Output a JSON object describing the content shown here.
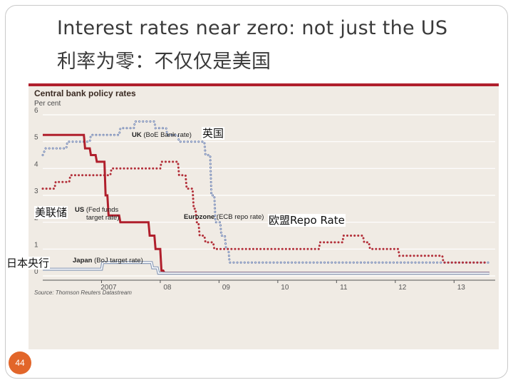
{
  "slide": {
    "title_en": "Interest rates near zero: not just the US",
    "title_zh": "利率为零：不仅仅是美国",
    "slide_number": "44"
  },
  "annotations": {
    "uk": "英国",
    "us": "美联储",
    "japan": "日本央行",
    "eurozone": "欧盟Repo Rate"
  },
  "chart_data": {
    "type": "line",
    "title": "Central bank policy rates",
    "subtitle": "Per cent",
    "source": "Source: Thomson Reuters Datastream",
    "ylim": [
      0,
      6
    ],
    "xlim": [
      2006.0,
      2013.7
    ],
    "y_ticks": [
      "0",
      "1",
      "2",
      "3",
      "4",
      "5",
      "6"
    ],
    "x_ticks": [
      {
        "label": "2007",
        "x": 2007.0
      },
      {
        "label": "08",
        "x": 2008.0
      },
      {
        "label": "09",
        "x": 2009.0
      },
      {
        "label": "10",
        "x": 2010.0
      },
      {
        "label": "11",
        "x": 2011.0
      },
      {
        "label": "12",
        "x": 2012.0
      },
      {
        "label": "13",
        "x": 2013.0
      }
    ],
    "grid": true,
    "series": [
      {
        "name": "UK (BoE Bank rate)",
        "label_main": "UK",
        "label_detail": "(BoE Bank rate)",
        "style": "dotted",
        "color": "#6a7fb0",
        "points": [
          [
            2006.0,
            4.5
          ],
          [
            2006.05,
            4.75
          ],
          [
            2006.4,
            4.75
          ],
          [
            2006.42,
            5.0
          ],
          [
            2006.8,
            5.0
          ],
          [
            2006.82,
            5.25
          ],
          [
            2007.3,
            5.25
          ],
          [
            2007.32,
            5.5
          ],
          [
            2007.55,
            5.5
          ],
          [
            2007.57,
            5.75
          ],
          [
            2007.9,
            5.75
          ],
          [
            2007.92,
            5.5
          ],
          [
            2008.1,
            5.5
          ],
          [
            2008.12,
            5.25
          ],
          [
            2008.3,
            5.25
          ],
          [
            2008.32,
            5.0
          ],
          [
            2008.75,
            5.0
          ],
          [
            2008.77,
            4.5
          ],
          [
            2008.85,
            4.5
          ],
          [
            2008.87,
            3.0
          ],
          [
            2008.92,
            3.0
          ],
          [
            2008.94,
            2.0
          ],
          [
            2009.02,
            2.0
          ],
          [
            2009.04,
            1.5
          ],
          [
            2009.1,
            1.5
          ],
          [
            2009.12,
            1.0
          ],
          [
            2009.16,
            1.0
          ],
          [
            2009.18,
            0.5
          ],
          [
            2013.6,
            0.5
          ]
        ]
      },
      {
        "name": "Eurozone (ECB repo rate)",
        "label_main": "Eurozone",
        "label_detail": "(ECB repo rate)",
        "style": "dotted",
        "color": "#b3303a",
        "points": [
          [
            2006.0,
            3.25
          ],
          [
            2006.2,
            3.25
          ],
          [
            2006.22,
            3.5
          ],
          [
            2006.45,
            3.5
          ],
          [
            2006.47,
            3.75
          ],
          [
            2007.15,
            3.75
          ],
          [
            2007.17,
            4.0
          ],
          [
            2008.0,
            4.0
          ],
          [
            2008.02,
            4.25
          ],
          [
            2008.3,
            4.25
          ],
          [
            2008.32,
            3.75
          ],
          [
            2008.43,
            3.75
          ],
          [
            2008.45,
            3.25
          ],
          [
            2008.55,
            3.25
          ],
          [
            2008.57,
            2.5
          ],
          [
            2008.6,
            2.5
          ],
          [
            2008.62,
            2.0
          ],
          [
            2008.65,
            2.0
          ],
          [
            2008.67,
            1.5
          ],
          [
            2008.75,
            1.5
          ],
          [
            2008.77,
            1.25
          ],
          [
            2008.9,
            1.25
          ],
          [
            2008.92,
            1.0
          ],
          [
            2010.7,
            1.0
          ],
          [
            2010.72,
            1.25
          ],
          [
            2011.1,
            1.25
          ],
          [
            2011.12,
            1.5
          ],
          [
            2011.45,
            1.5
          ],
          [
            2011.47,
            1.25
          ],
          [
            2011.55,
            1.25
          ],
          [
            2011.57,
            1.0
          ],
          [
            2012.05,
            1.0
          ],
          [
            2012.07,
            0.75
          ],
          [
            2012.8,
            0.75
          ],
          [
            2012.82,
            0.5
          ],
          [
            2013.55,
            0.5
          ]
        ]
      },
      {
        "name": "US (Fed funds target rate)",
        "label_main": "US",
        "label_detail": "(Fed funds target rate)",
        "style": "solid",
        "color": "#b01f2c",
        "points": [
          [
            2006.0,
            5.25
          ],
          [
            2006.7,
            5.25
          ],
          [
            2006.72,
            4.75
          ],
          [
            2006.8,
            4.75
          ],
          [
            2006.82,
            4.5
          ],
          [
            2006.9,
            4.5
          ],
          [
            2006.92,
            4.25
          ],
          [
            2007.05,
            4.25
          ],
          [
            2007.07,
            3.0
          ],
          [
            2007.1,
            3.0
          ],
          [
            2007.12,
            2.25
          ],
          [
            2007.3,
            2.25
          ],
          [
            2007.32,
            2.0
          ],
          [
            2007.8,
            2.0
          ],
          [
            2007.82,
            1.5
          ],
          [
            2007.9,
            1.5
          ],
          [
            2007.92,
            1.0
          ],
          [
            2008.0,
            1.0
          ],
          [
            2008.02,
            0.2
          ],
          [
            2008.05,
            0.2
          ],
          [
            2008.07,
            0.12
          ],
          [
            2013.6,
            0.12
          ]
        ]
      },
      {
        "name": "Japan (BoJ target rate)",
        "label_main": "Japan",
        "label_detail": "(BoJ target rate)",
        "style": "double",
        "color": "#8a9bb8",
        "points": [
          [
            2006.0,
            0.25
          ],
          [
            2007.0,
            0.25
          ],
          [
            2007.02,
            0.5
          ],
          [
            2007.85,
            0.5
          ],
          [
            2007.87,
            0.3
          ],
          [
            2007.95,
            0.3
          ],
          [
            2007.97,
            0.1
          ],
          [
            2013.6,
            0.1
          ]
        ]
      }
    ]
  }
}
